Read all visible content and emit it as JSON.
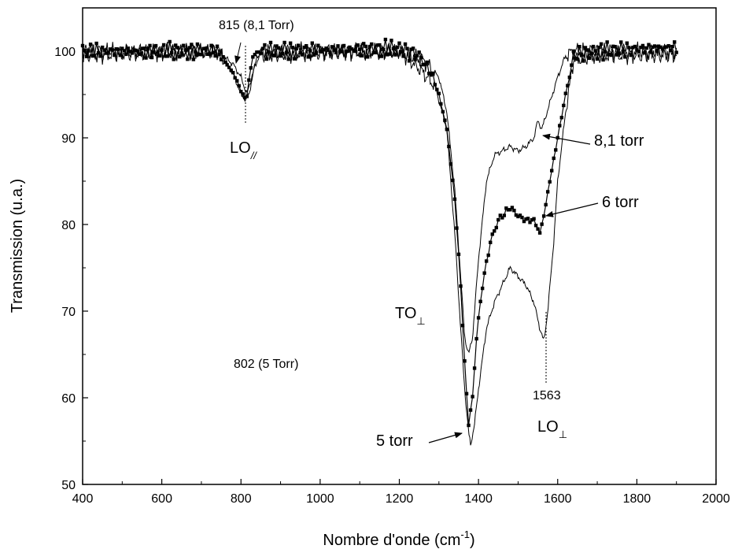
{
  "chart_data": {
    "type": "line",
    "xlabel": "Nombre d'onde (cm",
    "xlabel_sup": "-1",
    "xlabel_end": ")",
    "ylabel": "Transmission (u.a.)",
    "xlim": [
      400,
      2000
    ],
    "ylim": [
      50,
      105
    ],
    "xticks": [
      400,
      600,
      800,
      1000,
      1200,
      1400,
      1600,
      1800,
      2000
    ],
    "yticks": [
      50,
      60,
      70,
      80,
      90,
      100
    ],
    "grid": false,
    "legend": "none",
    "series": [
      {
        "name": "8,1 torr",
        "style": "thin-line",
        "x": [
          400,
          740,
          780,
          800,
          815,
          830,
          850,
          1200,
          1260,
          1300,
          1320,
          1340,
          1355,
          1365,
          1375,
          1385,
          1400,
          1420,
          1440,
          1460,
          1480,
          1500,
          1520,
          1540,
          1550,
          1560,
          1580,
          1600,
          1620,
          1640,
          1700,
          1900
        ],
        "y": [
          100,
          100,
          98.5,
          97,
          95,
          97.5,
          100,
          100,
          99,
          97,
          93,
          84,
          74,
          67,
          65,
          67,
          76,
          85,
          88,
          88.5,
          89,
          88.5,
          89,
          90,
          92,
          91,
          94,
          97,
          99.5,
          100,
          100,
          100
        ]
      },
      {
        "name": "6 torr",
        "style": "dotted-marker",
        "x": [
          400,
          740,
          780,
          800,
          808,
          815,
          830,
          850,
          1200,
          1250,
          1280,
          1300,
          1320,
          1340,
          1355,
          1365,
          1375,
          1385,
          1395,
          1410,
          1430,
          1450,
          1470,
          1480,
          1500,
          1520,
          1540,
          1555,
          1565,
          1580,
          1600,
          1620,
          1640,
          1700,
          1900
        ],
        "y": [
          100,
          100,
          97.5,
          95.5,
          94.5,
          95,
          99.5,
          100,
          100.3,
          99.5,
          97.5,
          95,
          91,
          83,
          73,
          64,
          57,
          60,
          67,
          73,
          78,
          80.5,
          81.5,
          82,
          81,
          80.5,
          80.5,
          79,
          81,
          85,
          90,
          95,
          99.5,
          100,
          100.5
        ]
      },
      {
        "name": "5 torr",
        "style": "thin-line",
        "x": [
          400,
          740,
          780,
          800,
          810,
          820,
          840,
          1200,
          1250,
          1290,
          1320,
          1340,
          1355,
          1365,
          1375,
          1380,
          1390,
          1400,
          1420,
          1440,
          1460,
          1480,
          1500,
          1520,
          1540,
          1555,
          1565,
          1575,
          1590,
          1600,
          1620,
          1640,
          1700,
          1900
        ],
        "y": [
          99.5,
          100,
          97.5,
          95,
          94.5,
          95,
          99.5,
          100,
          98,
          96,
          91,
          79,
          68,
          61,
          56,
          54.5,
          57,
          61,
          68,
          71,
          73,
          75,
          74,
          73,
          71,
          68,
          66.5,
          70,
          78,
          85,
          93,
          99,
          99.5,
          99.5
        ]
      }
    ],
    "annotations": {
      "peak_815": "815 (8,1 Torr)",
      "lo_par_main": "LO",
      "lo_par_sub": "//",
      "to_perp_main": "TO",
      "to_perp_sub": "⊥",
      "peak_802": "802 (5 Torr)",
      "peak_1563": "1563",
      "lo_perp_main": "LO",
      "lo_perp_sub": "⊥",
      "label_81": "8,1 torr",
      "label_6": "6 torr",
      "label_5": "5 torr"
    }
  }
}
